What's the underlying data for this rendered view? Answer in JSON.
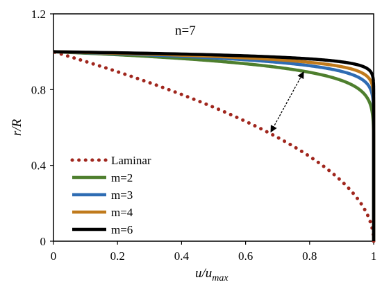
{
  "chart_data": {
    "type": "line",
    "annotation": "n=7",
    "xlabel_main": "u/u",
    "xlabel_sub": "max",
    "ylabel": "r/R",
    "xlim": [
      0,
      1
    ],
    "ylim": [
      0,
      1.2
    ],
    "x_ticks": [
      0,
      0.2,
      0.4,
      0.6,
      0.8,
      1
    ],
    "x_tick_labels": [
      "0",
      "0.2",
      "0.4",
      "0.6",
      "0.8",
      "1"
    ],
    "y_ticks": [
      0,
      0.4,
      0.8,
      1.2
    ],
    "y_tick_labels": [
      "0",
      "0.4",
      "0.8",
      "1.2"
    ],
    "grid": false,
    "legend_position": "bottom-left",
    "series": [
      {
        "name": "Laminar",
        "color": "#a0261d",
        "style": "dotted",
        "model": "laminar"
      },
      {
        "name": "m=2",
        "color": "#4e7f2e",
        "style": "solid",
        "model": "power",
        "m": 2
      },
      {
        "name": "m=3",
        "color": "#2e6cb3",
        "style": "solid",
        "model": "power",
        "m": 3
      },
      {
        "name": "m=4",
        "color": "#c07a1c",
        "style": "solid",
        "model": "power",
        "m": 4
      },
      {
        "name": "m=6",
        "color": "#000000",
        "style": "solid",
        "model": "power",
        "m": 6
      }
    ],
    "arrow": {
      "from": [
        0.68,
        0.58
      ],
      "to": [
        0.78,
        0.89
      ],
      "style": "dashed-double-headed"
    }
  }
}
